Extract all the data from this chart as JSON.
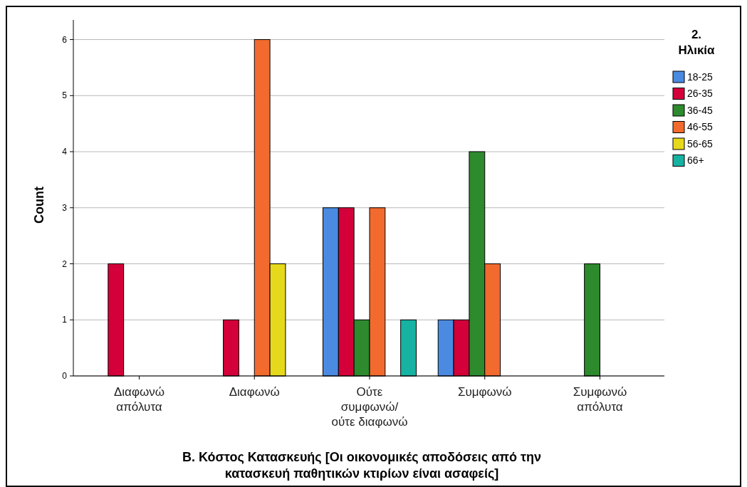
{
  "chart_data": {
    "type": "bar",
    "categories": [
      "Διαφωνώ\nαπόλυτα",
      "Διαφωνώ",
      "Ούτε\nσυμφωνώ/\nούτε διαφωνώ",
      "Συμφωνώ",
      "Συμφωνώ\nαπόλυτα"
    ],
    "series": [
      {
        "name": "18-25",
        "color": "#4a8ae0",
        "values": [
          null,
          null,
          3,
          1,
          null
        ]
      },
      {
        "name": "26-35",
        "color": "#d3003a",
        "values": [
          2,
          1,
          3,
          1,
          null
        ]
      },
      {
        "name": "36-45",
        "color": "#2d8a2d",
        "values": [
          null,
          null,
          1,
          4,
          2
        ]
      },
      {
        "name": "46-55",
        "color": "#f26a2e",
        "values": [
          null,
          6,
          3,
          2,
          null
        ]
      },
      {
        "name": "56-65",
        "color": "#e6d91c",
        "values": [
          null,
          2,
          null,
          null,
          null
        ]
      },
      {
        "name": "66+",
        "color": "#16b3a3",
        "values": [
          null,
          null,
          1,
          null,
          null
        ]
      }
    ],
    "xlabel": "Β. Κόστος Κατασκευής [Οι οικονομικές αποδόσεις από την\nκατασκευή παθητικών κτιρίων είναι ασαφείς]",
    "ylabel": "Count",
    "legend_title": "2.\nΗλικία",
    "ylim": [
      0,
      6.35
    ],
    "yticks": [
      0,
      1,
      2,
      3,
      4,
      5,
      6
    ],
    "grid": "y",
    "legend": "right"
  }
}
